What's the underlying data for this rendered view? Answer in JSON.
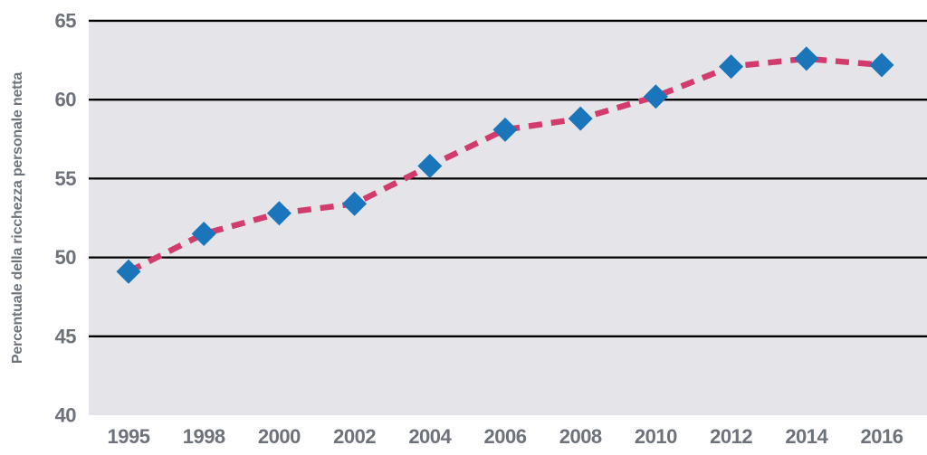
{
  "chart_data": {
    "type": "line",
    "title": "",
    "ylabel": "Percentuale della ricchezza personale netta",
    "xlabel": "",
    "categories": [
      "1995",
      "1998",
      "2000",
      "2002",
      "2004",
      "2006",
      "2008",
      "2010",
      "2012",
      "2014",
      "2016"
    ],
    "values": [
      49.1,
      51.5,
      52.8,
      53.4,
      55.8,
      58.1,
      58.8,
      60.2,
      62.1,
      62.6,
      62.2
    ],
    "y_ticks": [
      40,
      45,
      50,
      55,
      60,
      65
    ],
    "ylim": [
      40,
      65
    ],
    "grid": "horizontal",
    "legend": "none",
    "line_style": "dashed",
    "marker_style": "diamond",
    "colors": {
      "line": "#d23c6d",
      "marker": "#1b75ba",
      "plot_background": "#e4e4e9",
      "gridline": "#000000",
      "axis_text": "#6e727b"
    }
  }
}
